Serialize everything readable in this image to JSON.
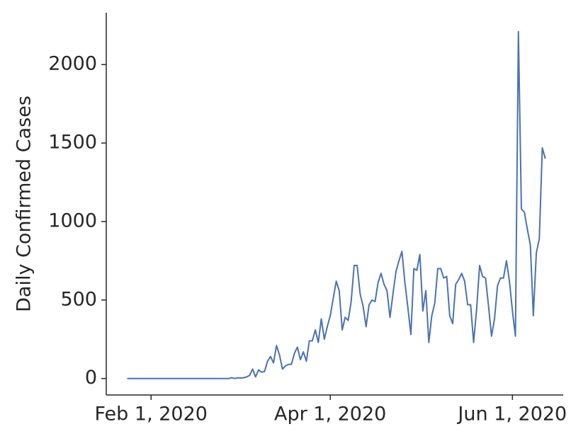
{
  "chart_data": {
    "type": "line",
    "y_label": "Daily Confirmed Cases",
    "color": "#4c72b0",
    "x": [
      "2020-01-24",
      "2020-01-25",
      "2020-01-26",
      "2020-01-27",
      "2020-01-28",
      "2020-01-29",
      "2020-01-30",
      "2020-01-31",
      "2020-02-01",
      "2020-02-02",
      "2020-02-03",
      "2020-02-04",
      "2020-02-05",
      "2020-02-06",
      "2020-02-07",
      "2020-02-08",
      "2020-02-09",
      "2020-02-10",
      "2020-02-11",
      "2020-02-12",
      "2020-02-13",
      "2020-02-14",
      "2020-02-15",
      "2020-02-16",
      "2020-02-17",
      "2020-02-18",
      "2020-02-19",
      "2020-02-20",
      "2020-02-21",
      "2020-02-22",
      "2020-02-23",
      "2020-02-24",
      "2020-02-25",
      "2020-02-26",
      "2020-02-27",
      "2020-02-28",
      "2020-02-29",
      "2020-03-01",
      "2020-03-02",
      "2020-03-03",
      "2020-03-04",
      "2020-03-05",
      "2020-03-06",
      "2020-03-07",
      "2020-03-08",
      "2020-03-09",
      "2020-03-10",
      "2020-03-11",
      "2020-03-12",
      "2020-03-13",
      "2020-03-14",
      "2020-03-15",
      "2020-03-16",
      "2020-03-17",
      "2020-03-18",
      "2020-03-19",
      "2020-03-20",
      "2020-03-21",
      "2020-03-22",
      "2020-03-23",
      "2020-03-24",
      "2020-03-25",
      "2020-03-26",
      "2020-03-27",
      "2020-03-28",
      "2020-03-29",
      "2020-03-30",
      "2020-03-31",
      "2020-04-01",
      "2020-04-02",
      "2020-04-03",
      "2020-04-04",
      "2020-04-05",
      "2020-04-06",
      "2020-04-07",
      "2020-04-08",
      "2020-04-09",
      "2020-04-10",
      "2020-04-11",
      "2020-04-12",
      "2020-04-13",
      "2020-04-14",
      "2020-04-15",
      "2020-04-16",
      "2020-04-17",
      "2020-04-18",
      "2020-04-19",
      "2020-04-20",
      "2020-04-21",
      "2020-04-22",
      "2020-04-23",
      "2020-04-24",
      "2020-04-25",
      "2020-04-26",
      "2020-04-27",
      "2020-04-28",
      "2020-04-29",
      "2020-04-30",
      "2020-05-01",
      "2020-05-02",
      "2020-05-03",
      "2020-05-04",
      "2020-05-05",
      "2020-05-06",
      "2020-05-07",
      "2020-05-08",
      "2020-05-09",
      "2020-05-10",
      "2020-05-11",
      "2020-05-12",
      "2020-05-13",
      "2020-05-14",
      "2020-05-15",
      "2020-05-16",
      "2020-05-17",
      "2020-05-18",
      "2020-05-19",
      "2020-05-20",
      "2020-05-21",
      "2020-05-22",
      "2020-05-23",
      "2020-05-24",
      "2020-05-25",
      "2020-05-26",
      "2020-05-27",
      "2020-05-28",
      "2020-05-29",
      "2020-05-30",
      "2020-05-31",
      "2020-06-01",
      "2020-06-02",
      "2020-06-03",
      "2020-06-04",
      "2020-06-05",
      "2020-06-06",
      "2020-06-07",
      "2020-06-08",
      "2020-06-09",
      "2020-06-10",
      "2020-06-11",
      "2020-06-12"
    ],
    "values": [
      0,
      0,
      0,
      0,
      0,
      0,
      0,
      0,
      0,
      0,
      0,
      0,
      0,
      0,
      0,
      0,
      0,
      0,
      0,
      0,
      0,
      0,
      0,
      0,
      0,
      0,
      0,
      0,
      0,
      0,
      0,
      0,
      0,
      0,
      0,
      5,
      0,
      5,
      3,
      5,
      10,
      20,
      60,
      10,
      55,
      40,
      45,
      110,
      140,
      100,
      210,
      150,
      60,
      80,
      90,
      90,
      160,
      200,
      120,
      170,
      110,
      240,
      240,
      310,
      230,
      380,
      250,
      330,
      400,
      510,
      620,
      560,
      310,
      390,
      370,
      490,
      720,
      720,
      540,
      460,
      330,
      470,
      500,
      490,
      610,
      670,
      600,
      560,
      390,
      540,
      680,
      750,
      810,
      610,
      450,
      280,
      700,
      690,
      790,
      430,
      560,
      230,
      400,
      480,
      700,
      700,
      640,
      650,
      400,
      350,
      600,
      630,
      670,
      620,
      470,
      470,
      230,
      440,
      720,
      650,
      640,
      460,
      270,
      380,
      590,
      640,
      640,
      750,
      620,
      430,
      270,
      2210,
      1080,
      1060,
      950,
      850,
      400,
      800,
      890,
      1470,
      1400
    ],
    "xlim": [
      "2020-01-17",
      "2020-06-18"
    ],
    "xticks": [
      {
        "value": "2020-02-01",
        "label": "Feb 1, 2020"
      },
      {
        "value": "2020-04-01",
        "label": "Apr 1, 2020"
      },
      {
        "value": "2020-06-01",
        "label": "Jun 1, 2020"
      }
    ],
    "ylim": [
      -105,
      2330
    ],
    "yticks": [
      0,
      500,
      1000,
      1500,
      2000
    ],
    "grid": false
  }
}
